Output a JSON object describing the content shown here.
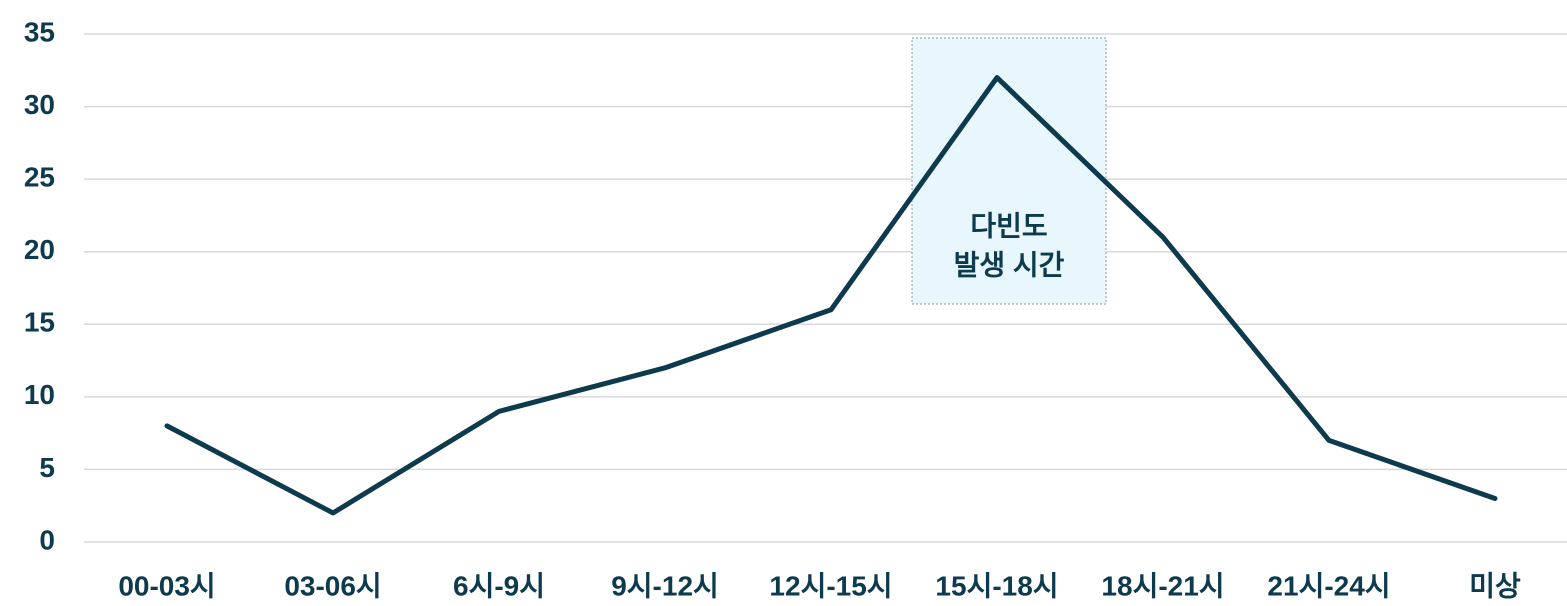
{
  "chart_data": {
    "type": "line",
    "categories": [
      "00-03시",
      "03-06시",
      "6시-9시",
      "9시-12시",
      "12시-15시",
      "15시-18시",
      "18시-21시",
      "21시-24시",
      "미상"
    ],
    "series": [
      {
        "name": null,
        "color": "#0e3a4e",
        "values": [
          8,
          2,
          9,
          12,
          16,
          32,
          21,
          7,
          3
        ]
      }
    ],
    "ylim": [
      0,
      35
    ],
    "yticks": [
      0,
      5,
      10,
      15,
      20,
      25,
      30,
      35
    ],
    "grid": true,
    "annotation": [
      "다빈도",
      "발생 시간"
    ]
  }
}
